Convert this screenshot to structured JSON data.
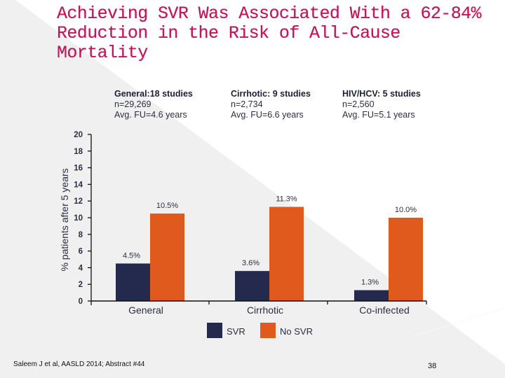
{
  "slide": {
    "title_lines": [
      "Achieving SVR Was Associated With a 62-84%",
      "Reduction in the Risk of All-Cause",
      "Mortality"
    ],
    "title_color": "#c0185a",
    "footer": "Saleem J et al, AASLD 2014; Abstract #44",
    "page_number": "38"
  },
  "groups_info": [
    {
      "head": "General:18 studies",
      "n": "n=29,269",
      "fu": "Avg. FU=4.6 years"
    },
    {
      "head": "Cirrhotic: 9 studies",
      "n": "n=2,734",
      "fu": "Avg. FU=6.6 years"
    },
    {
      "head": "HIV/HCV: 5 studies",
      "n": "n=2,560",
      "fu": "Avg. FU=5.1 years"
    }
  ],
  "chart_data": {
    "type": "bar",
    "title": "",
    "xlabel": "",
    "ylabel": "% patients after 5 years",
    "ylim": [
      0,
      20
    ],
    "yticks": [
      0,
      2,
      4,
      6,
      8,
      10,
      12,
      14,
      16,
      18,
      20
    ],
    "categories": [
      "General",
      "Cirrhotic",
      "Co-infected"
    ],
    "series": [
      {
        "name": "SVR",
        "color": "#232a4e",
        "values": [
          4.5,
          3.6,
          1.3
        ],
        "labels": [
          "4.5%",
          "3.6%",
          "1.3%"
        ]
      },
      {
        "name": "No SVR",
        "color": "#e05a1e",
        "values": [
          10.5,
          11.3,
          10.0
        ],
        "labels": [
          "10.5%",
          "11.3%",
          "10.0%"
        ]
      }
    ],
    "grid": false,
    "legend": "bottom-center"
  }
}
